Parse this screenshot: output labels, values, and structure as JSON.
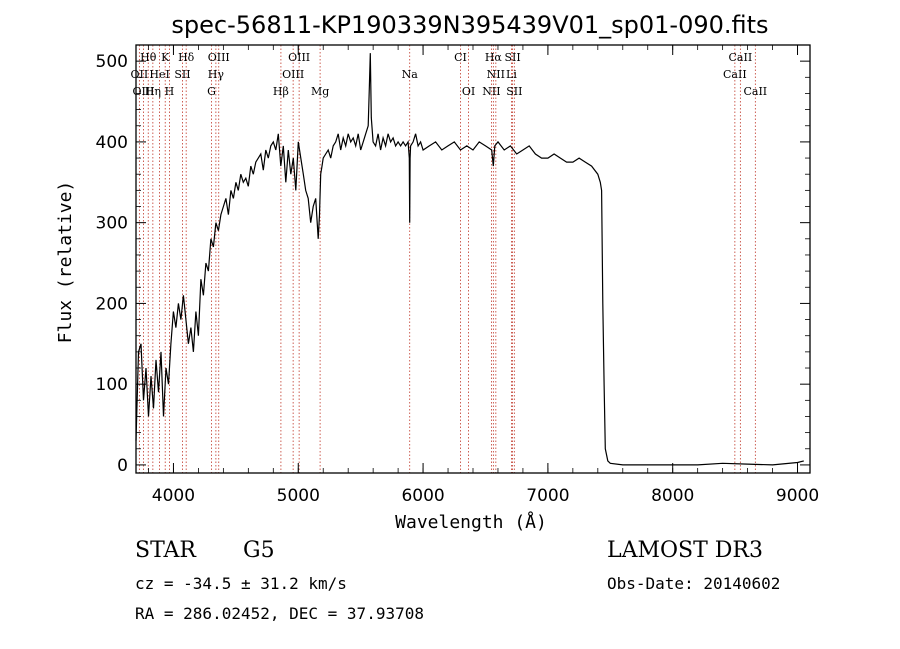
{
  "chart_data": {
    "type": "line",
    "title": "spec-56811-KP190339N395439V01_sp01-090.fits",
    "xlabel": "Wavelength (Å)",
    "ylabel": "Flux (relative)",
    "xlim": [
      3700,
      9100
    ],
    "ylim": [
      -10,
      520
    ],
    "xticks": [
      4000,
      5000,
      6000,
      7000,
      8000,
      9000
    ],
    "yticks": [
      0,
      100,
      200,
      300,
      400,
      500
    ],
    "grid": false,
    "series": [
      {
        "x": [
          3700,
          3720,
          3740,
          3760,
          3780,
          3800,
          3820,
          3840,
          3860,
          3880,
          3900,
          3920,
          3940,
          3960,
          3980,
          4000,
          4020,
          4040,
          4060,
          4080,
          4100,
          4120,
          4140,
          4160,
          4180,
          4200,
          4220,
          4240,
          4260,
          4280,
          4300,
          4320,
          4340,
          4360,
          4380,
          4400,
          4420,
          4440,
          4460,
          4480,
          4500,
          4520,
          4540,
          4560,
          4580,
          4600,
          4620,
          4640,
          4660,
          4680,
          4700,
          4720,
          4740,
          4760,
          4780,
          4800,
          4820,
          4840,
          4860,
          4880,
          4900,
          4920,
          4940,
          4960,
          4980,
          5000,
          5020,
          5040,
          5060,
          5080,
          5100,
          5120,
          5140,
          5160,
          5170,
          5180,
          5190,
          5200,
          5220,
          5240,
          5260,
          5280,
          5300,
          5320,
          5340,
          5360,
          5380,
          5400,
          5420,
          5440,
          5460,
          5480,
          5500,
          5520,
          5540,
          5560,
          5570,
          5577,
          5585,
          5600,
          5620,
          5640,
          5660,
          5680,
          5700,
          5720,
          5740,
          5760,
          5780,
          5800,
          5820,
          5840,
          5860,
          5880,
          5890,
          5893,
          5896,
          5900,
          5920,
          5940,
          5960,
          5980,
          6000,
          6050,
          6100,
          6150,
          6200,
          6250,
          6300,
          6350,
          6400,
          6450,
          6500,
          6550,
          6563,
          6575,
          6600,
          6650,
          6700,
          6750,
          6800,
          6850,
          6900,
          6950,
          7000,
          7050,
          7100,
          7150,
          7200,
          7250,
          7300,
          7350,
          7400,
          7420,
          7430,
          7440,
          7450,
          7460,
          7480,
          7500,
          7600,
          7800,
          8000,
          8200,
          8400,
          8600,
          8800,
          9000,
          9050
        ],
        "y": [
          30,
          140,
          150,
          80,
          120,
          60,
          110,
          70,
          130,
          90,
          140,
          60,
          120,
          100,
          150,
          190,
          170,
          200,
          180,
          210,
          180,
          150,
          170,
          140,
          190,
          160,
          230,
          210,
          250,
          240,
          280,
          270,
          300,
          290,
          310,
          320,
          330,
          310,
          340,
          330,
          350,
          340,
          360,
          350,
          355,
          345,
          370,
          360,
          375,
          380,
          385,
          365,
          390,
          380,
          395,
          400,
          390,
          410,
          370,
          395,
          350,
          390,
          360,
          380,
          340,
          400,
          380,
          360,
          340,
          330,
          300,
          320,
          330,
          280,
          310,
          360,
          370,
          380,
          385,
          390,
          380,
          395,
          400,
          410,
          390,
          405,
          395,
          410,
          400,
          405,
          395,
          410,
          390,
          400,
          410,
          420,
          470,
          510,
          430,
          400,
          395,
          410,
          390,
          405,
          395,
          410,
          400,
          405,
          395,
          400,
          395,
          400,
          395,
          400,
          380,
          300,
          380,
          395,
          400,
          410,
          395,
          400,
          390,
          395,
          400,
          390,
          395,
          400,
          390,
          395,
          390,
          400,
          395,
          390,
          370,
          395,
          400,
          390,
          395,
          385,
          390,
          395,
          385,
          380,
          380,
          385,
          380,
          375,
          375,
          380,
          375,
          370,
          360,
          350,
          340,
          200,
          100,
          20,
          5,
          2,
          0,
          0,
          0,
          0,
          2,
          1,
          0,
          3,
          5
        ]
      }
    ],
    "line_markers": [
      {
        "label": "Hθ",
        "x": 3798,
        "row": 0
      },
      {
        "label": "K",
        "x": 3934,
        "row": 0
      },
      {
        "label": "Hδ",
        "x": 4102,
        "row": 0
      },
      {
        "label": "OIII",
        "x": 4363,
        "row": 0
      },
      {
        "label": "OIII",
        "x": 5007,
        "row": 0
      },
      {
        "label": "CI",
        "x": 6300,
        "row": 0
      },
      {
        "label": "Hα",
        "x": 6563,
        "row": 0
      },
      {
        "label": "SII",
        "x": 6717,
        "row": 0
      },
      {
        "label": "CaII",
        "x": 8542,
        "row": 0
      },
      {
        "label": "OII",
        "x": 3727,
        "row": 1
      },
      {
        "label": "HeI",
        "x": 3889,
        "row": 1
      },
      {
        "label": "SII",
        "x": 4072,
        "row": 1
      },
      {
        "label": "Hγ",
        "x": 4340,
        "row": 1
      },
      {
        "label": "OIII",
        "x": 4959,
        "row": 1
      },
      {
        "label": "Na",
        "x": 5893,
        "row": 1
      },
      {
        "label": "NII",
        "x": 6583,
        "row": 1
      },
      {
        "label": "Li",
        "x": 6708,
        "row": 1
      },
      {
        "label": "CaII",
        "x": 8498,
        "row": 1
      },
      {
        "label": "OIII",
        "x": 3760,
        "row": 2
      },
      {
        "label": "Hη",
        "x": 3835,
        "row": 2
      },
      {
        "label": "H",
        "x": 3968,
        "row": 2
      },
      {
        "label": "G",
        "x": 4305,
        "row": 2
      },
      {
        "label": "Hβ",
        "x": 4861,
        "row": 2
      },
      {
        "label": "Mg",
        "x": 5175,
        "row": 2
      },
      {
        "label": "OI",
        "x": 6364,
        "row": 2
      },
      {
        "label": "NII",
        "x": 6548,
        "row": 2
      },
      {
        "label": "SII",
        "x": 6731,
        "row": 2
      },
      {
        "label": "CaII",
        "x": 8662,
        "row": 2
      }
    ],
    "colors": {
      "spectrum": "#000000",
      "marker": "#c0392b"
    }
  },
  "info": {
    "object_class": "STAR",
    "subclass": "G5",
    "survey": "LAMOST DR3",
    "cz": "cz = -34.5 ± 31.2 km/s",
    "obs_date": "Obs-Date: 20140602",
    "coords": "RA = 286.02452, DEC =  37.93708"
  }
}
